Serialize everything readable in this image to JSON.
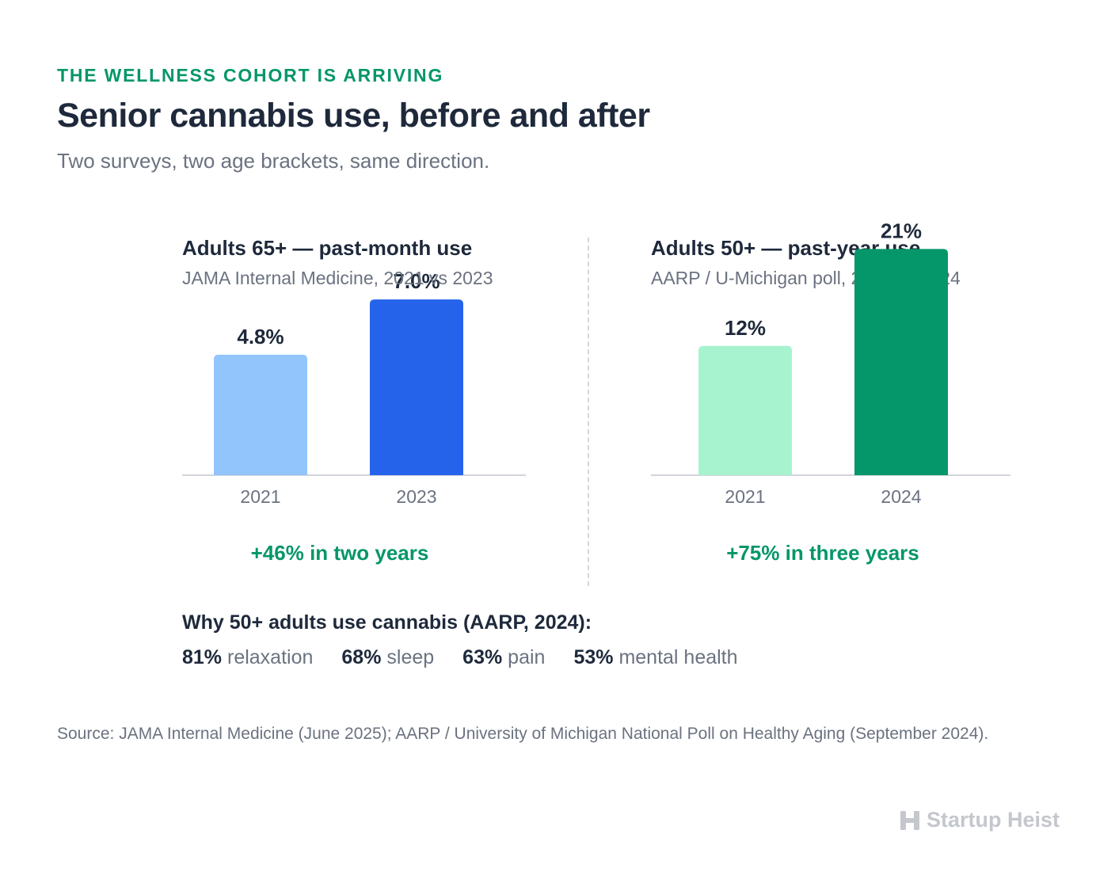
{
  "header": {
    "eyebrow": "THE WELLNESS COHORT IS ARRIVING",
    "title": "Senior cannabis use, before and after",
    "subtitle": "Two surveys, two age brackets, same direction."
  },
  "chart_data": [
    {
      "type": "bar",
      "title": "Adults 65+ — past-month use",
      "subtitle": "JAMA Internal Medicine, 2021 vs 2023",
      "categories": [
        "2021",
        "2023"
      ],
      "values": [
        4.8,
        7.0
      ],
      "labels": [
        "4.8%",
        "7.0%"
      ],
      "colors": [
        "#93c5fd",
        "#2563eb"
      ],
      "change_label": "+46% in two years",
      "grid": false
    },
    {
      "type": "bar",
      "title": "Adults 50+ — past-year use",
      "subtitle": "AARP / U-Michigan poll, 2021 vs 2024",
      "categories": [
        "2021",
        "2024"
      ],
      "values": [
        12,
        21
      ],
      "labels": [
        "12%",
        "21%"
      ],
      "colors": [
        "#a7f3d0",
        "#059669"
      ],
      "change_label": "+75% in three years",
      "grid": false
    }
  ],
  "reasons": {
    "title": "Why 50+ adults use cannabis (AARP, 2024):",
    "items": [
      {
        "pct": "81%",
        "label": "relaxation"
      },
      {
        "pct": "68%",
        "label": "sleep"
      },
      {
        "pct": "63%",
        "label": "pain"
      },
      {
        "pct": "53%",
        "label": "mental health"
      }
    ]
  },
  "footer": {
    "source": "Source: JAMA Internal Medicine (June 2025); AARP / University of Michigan National Poll on Healthy Aging (September 2024).",
    "brand": "Startup Heist",
    "brand_icon": "h-logo-icon"
  }
}
